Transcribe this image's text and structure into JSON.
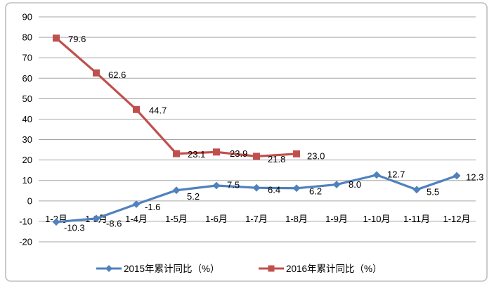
{
  "chart_data": {
    "type": "line",
    "title": "",
    "xlabel": "",
    "ylabel": "",
    "categories": [
      "1-2月",
      "1-3月",
      "1-4月",
      "1-5月",
      "1-6月",
      "1-7月",
      "1-8月",
      "1-9月",
      "1-10月",
      "1-11月",
      "1-12月"
    ],
    "series": [
      {
        "name": "2015年累计同比（%）",
        "color": "#4F81BD",
        "marker": "diamond",
        "values": [
          -10.3,
          -8.6,
          -1.6,
          5.2,
          7.5,
          6.4,
          6.2,
          8.0,
          12.7,
          5.5,
          12.3
        ]
      },
      {
        "name": "2016年累计同比（%）",
        "color": "#C0504D",
        "marker": "square",
        "values": [
          79.6,
          62.6,
          44.7,
          23.1,
          23.9,
          21.8,
          23.0
        ]
      }
    ],
    "data_labels": true,
    "label_decimals": 1,
    "ylim": [
      -20,
      90
    ],
    "ytick_step": 10,
    "yticks": [
      90,
      80,
      70,
      60,
      50,
      40,
      30,
      20,
      10,
      0,
      -10,
      -20
    ],
    "grid": true,
    "legend_position": "bottom",
    "colors": {
      "background": "#FFFFFF",
      "border": "#BDBDBD",
      "gridline": "#A6A6A6",
      "text": "#000000"
    }
  }
}
